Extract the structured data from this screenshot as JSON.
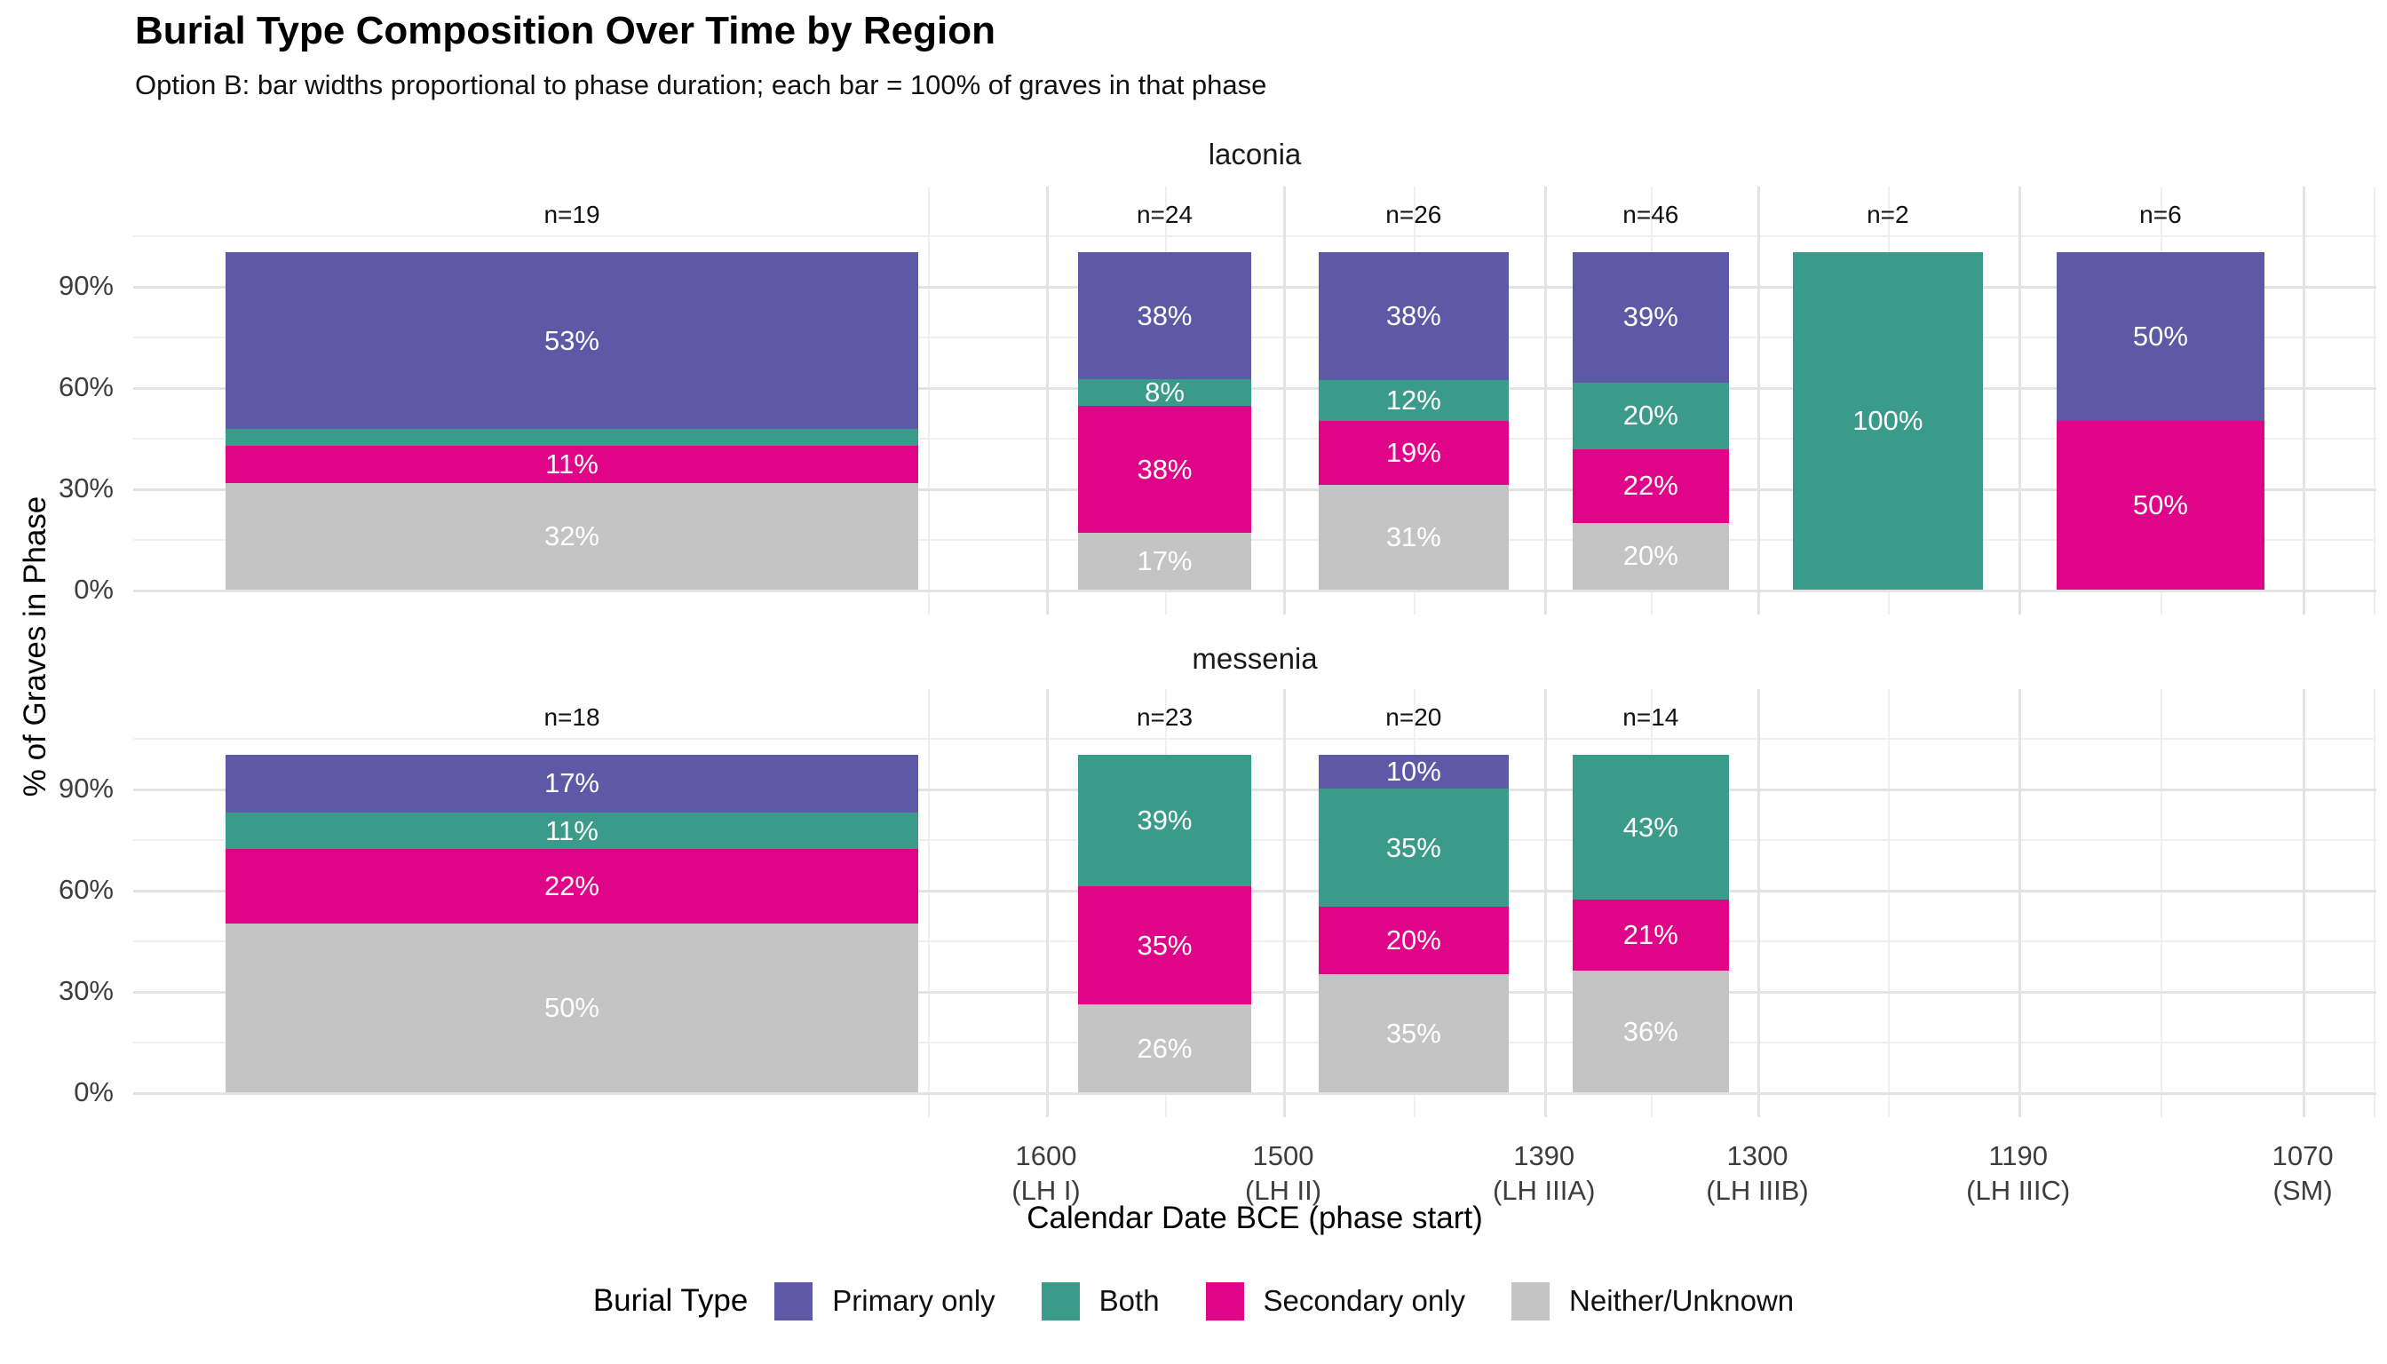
{
  "title": "Burial Type Composition Over Time by Region",
  "subtitle": "Option B: bar widths proportional to phase duration; each bar = 100% of graves in that phase",
  "chart_data": {
    "type": "bar",
    "stacked": true,
    "title": "Burial Type Composition Over Time by Region",
    "subtitle": "Option B: bar widths proportional to phase duration; each bar = 100% of graves in that phase",
    "xlabel": "Calendar Date BCE (phase start)",
    "ylabel": "% of Graves in Phase",
    "grid": true,
    "legend_position": "bottom",
    "y_axis": {
      "tick_labels": [
        "90%",
        "60%",
        "30%",
        "0%"
      ],
      "tick_values": [
        90,
        60,
        30,
        0
      ],
      "minor_values": [
        105,
        75,
        45,
        15
      ],
      "ylim": [
        0,
        100
      ]
    },
    "x_axis": {
      "ticks": [
        {
          "year": 1600,
          "line1": "1600",
          "line2": "(LH I)"
        },
        {
          "year": 1500,
          "line1": "1500",
          "line2": "(LH II)"
        },
        {
          "year": 1390,
          "line1": "1390",
          "line2": "(LH IIIA)"
        },
        {
          "year": 1300,
          "line1": "1300",
          "line2": "(LH IIIB)"
        },
        {
          "year": 1190,
          "line1": "1190",
          "line2": "(LH IIIC)"
        },
        {
          "year": 1070,
          "line1": "1070",
          "line2": "(SM)"
        }
      ],
      "minor_years": [
        1650,
        1550,
        1445,
        1345,
        1245,
        1130,
        1040
      ]
    },
    "legend": {
      "title": "Burial Type",
      "items": [
        {
          "label": "Primary only",
          "color": "#5e59a6"
        },
        {
          "label": "Both",
          "color": "#3a9b8a"
        },
        {
          "label": "Secondary only",
          "color": "#e00488"
        },
        {
          "label": "Neither/Unknown",
          "color": "#c4c4c4"
        }
      ]
    },
    "facets": [
      {
        "label": "laconia",
        "bars": [
          {
            "n_label": "n=19",
            "year_start": 2000,
            "year_end": 1600,
            "segments": [
              {
                "series": "Neither/Unknown",
                "pct": 32,
                "label": "32%"
              },
              {
                "series": "Secondary only",
                "pct": 11,
                "label": "11%"
              },
              {
                "series": "Both",
                "pct": 5,
                "label": ""
              },
              {
                "series": "Primary only",
                "pct": 53,
                "label": "53%"
              }
            ]
          },
          {
            "n_label": "n=24",
            "year_start": 1600,
            "year_end": 1500,
            "segments": [
              {
                "series": "Neither/Unknown",
                "pct": 17,
                "label": "17%"
              },
              {
                "series": "Secondary only",
                "pct": 38,
                "label": "38%"
              },
              {
                "series": "Both",
                "pct": 8,
                "label": "8%"
              },
              {
                "series": "Primary only",
                "pct": 38,
                "label": "38%"
              }
            ]
          },
          {
            "n_label": "n=26",
            "year_start": 1500,
            "year_end": 1390,
            "segments": [
              {
                "series": "Neither/Unknown",
                "pct": 31,
                "label": "31%"
              },
              {
                "series": "Secondary only",
                "pct": 19,
                "label": "19%"
              },
              {
                "series": "Both",
                "pct": 12,
                "label": "12%"
              },
              {
                "series": "Primary only",
                "pct": 38,
                "label": "38%"
              }
            ]
          },
          {
            "n_label": "n=46",
            "year_start": 1390,
            "year_end": 1300,
            "segments": [
              {
                "series": "Neither/Unknown",
                "pct": 20,
                "label": "20%"
              },
              {
                "series": "Secondary only",
                "pct": 22,
                "label": "22%"
              },
              {
                "series": "Both",
                "pct": 20,
                "label": "20%"
              },
              {
                "series": "Primary only",
                "pct": 39,
                "label": "39%"
              }
            ]
          },
          {
            "n_label": "n=2",
            "year_start": 1300,
            "year_end": 1190,
            "segments": [
              {
                "series": "Both",
                "pct": 100,
                "label": "100%"
              }
            ]
          },
          {
            "n_label": "n=6",
            "year_start": 1190,
            "year_end": 1070,
            "segments": [
              {
                "series": "Secondary only",
                "pct": 50,
                "label": "50%"
              },
              {
                "series": "Primary only",
                "pct": 50,
                "label": "50%"
              }
            ]
          }
        ]
      },
      {
        "label": "messenia",
        "bars": [
          {
            "n_label": "n=18",
            "year_start": 2000,
            "year_end": 1600,
            "segments": [
              {
                "series": "Neither/Unknown",
                "pct": 50,
                "label": "50%"
              },
              {
                "series": "Secondary only",
                "pct": 22,
                "label": "22%"
              },
              {
                "series": "Both",
                "pct": 11,
                "label": "11%"
              },
              {
                "series": "Primary only",
                "pct": 17,
                "label": "17%"
              }
            ]
          },
          {
            "n_label": "n=23",
            "year_start": 1600,
            "year_end": 1500,
            "segments": [
              {
                "series": "Neither/Unknown",
                "pct": 26,
                "label": "26%"
              },
              {
                "series": "Secondary only",
                "pct": 35,
                "label": "35%"
              },
              {
                "series": "Both",
                "pct": 39,
                "label": "39%"
              }
            ]
          },
          {
            "n_label": "n=20",
            "year_start": 1500,
            "year_end": 1390,
            "segments": [
              {
                "series": "Neither/Unknown",
                "pct": 35,
                "label": "35%"
              },
              {
                "series": "Secondary only",
                "pct": 20,
                "label": "20%"
              },
              {
                "series": "Both",
                "pct": 35,
                "label": "35%"
              },
              {
                "series": "Primary only",
                "pct": 10,
                "label": "10%"
              }
            ]
          },
          {
            "n_label": "n=14",
            "year_start": 1390,
            "year_end": 1300,
            "segments": [
              {
                "series": "Neither/Unknown",
                "pct": 36,
                "label": "36%"
              },
              {
                "series": "Secondary only",
                "pct": 21,
                "label": "21%"
              },
              {
                "series": "Both",
                "pct": 43,
                "label": "43%"
              }
            ]
          }
        ]
      }
    ]
  }
}
